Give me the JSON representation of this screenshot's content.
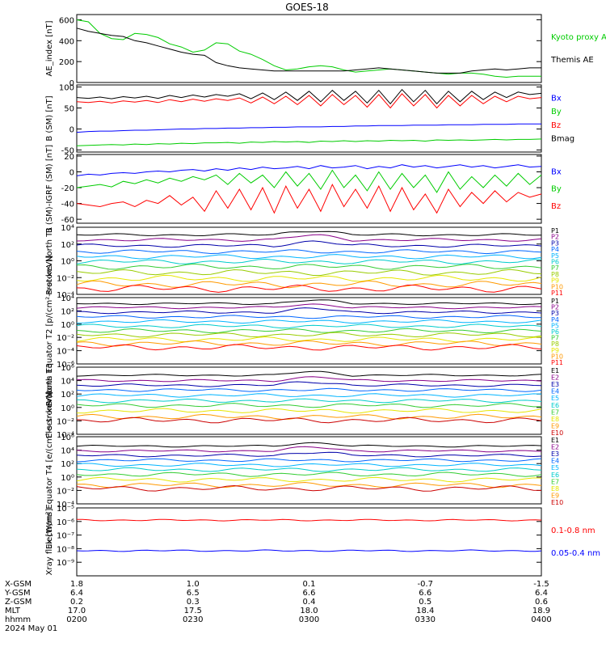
{
  "title": "GOES-18",
  "colors": {
    "black": "#000000",
    "green": "#00cc00",
    "blue": "#0000ff",
    "red": "#ff0000",
    "purple": "#880088",
    "navy": "#0000aa",
    "cyan": "#00b4ff",
    "teal": "#00cccc",
    "lime": "#33cc33",
    "yellow": "#e6e600",
    "orange": "#ff9900",
    "darkred": "#cc0000",
    "maroon": "#aa0000"
  },
  "chart_data": [
    {
      "type": "line",
      "ylabel": "AE_index [nT]",
      "ylim": [
        0,
        650
      ],
      "yticks": [
        "600",
        "400",
        "200",
        "0"
      ],
      "ytick_values": [
        600,
        400,
        200,
        0
      ],
      "legend": [
        "Kyoto proxy AE",
        "Themis AE"
      ],
      "series": [
        {
          "name": "Kyoto proxy AE",
          "color": "#00cc00",
          "values": [
            600,
            580,
            470,
            420,
            410,
            470,
            460,
            430,
            370,
            340,
            290,
            310,
            380,
            370,
            300,
            270,
            220,
            160,
            120,
            130,
            150,
            160,
            150,
            120,
            100,
            110,
            120,
            130,
            120,
            110,
            100,
            90,
            80,
            90,
            90,
            80,
            60,
            50,
            60,
            60,
            60
          ]
        },
        {
          "name": "Themis AE",
          "color": "#000000",
          "values": [
            520,
            490,
            470,
            450,
            440,
            400,
            380,
            350,
            320,
            290,
            270,
            260,
            190,
            160,
            140,
            130,
            120,
            110,
            110,
            110,
            110,
            110,
            110,
            110,
            120,
            130,
            140,
            130,
            120,
            110,
            100,
            90,
            90,
            90,
            110,
            120,
            130,
            120,
            130,
            140,
            140
          ]
        }
      ]
    },
    {
      "type": "line",
      "ylabel": "B (SM) [nT]",
      "ylim": [
        -55,
        105
      ],
      "yticks": [
        "100",
        "50",
        "0",
        "-50"
      ],
      "ytick_values": [
        100,
        50,
        0,
        -50
      ],
      "legend": [
        "Bx",
        "By",
        "Bz",
        "Bmag"
      ],
      "series": [
        {
          "name": "Bx",
          "color": "#0000ff",
          "values": [
            -8,
            -6,
            -5,
            -5,
            -4,
            -3,
            -3,
            -2,
            -1,
            0,
            0,
            1,
            1,
            2,
            2,
            3,
            3,
            4,
            4,
            5,
            5,
            5,
            6,
            6,
            7,
            7,
            8,
            8,
            8,
            9,
            9,
            9,
            10,
            10,
            10,
            11,
            11,
            11,
            12,
            12,
            12
          ]
        },
        {
          "name": "By",
          "color": "#00cc00",
          "values": [
            -40,
            -39,
            -38,
            -37,
            -38,
            -36,
            -37,
            -35,
            -36,
            -34,
            -35,
            -33,
            -33,
            -32,
            -34,
            -31,
            -32,
            -30,
            -31,
            -30,
            -32,
            -29,
            -30,
            -28,
            -30,
            -28,
            -29,
            -27,
            -28,
            -27,
            -29,
            -26,
            -27,
            -26,
            -27,
            -26,
            -25,
            -26,
            -25,
            -25,
            -24
          ]
        },
        {
          "name": "Bz",
          "color": "#ff0000",
          "values": [
            65,
            63,
            66,
            62,
            67,
            64,
            68,
            63,
            70,
            65,
            71,
            66,
            72,
            68,
            74,
            62,
            76,
            60,
            78,
            58,
            80,
            55,
            82,
            58,
            80,
            52,
            82,
            50,
            84,
            55,
            82,
            50,
            80,
            55,
            80,
            60,
            78,
            65,
            78,
            72,
            75
          ]
        },
        {
          "name": "Bmag",
          "color": "#000000",
          "values": [
            75,
            73,
            76,
            72,
            77,
            74,
            78,
            73,
            80,
            75,
            81,
            76,
            82,
            78,
            84,
            72,
            86,
            70,
            88,
            68,
            90,
            65,
            92,
            68,
            90,
            62,
            92,
            60,
            94,
            65,
            92,
            60,
            90,
            65,
            90,
            70,
            88,
            75,
            88,
            82,
            85
          ]
        }
      ]
    },
    {
      "type": "line",
      "ylabel": "B (SM)-IGRF (SM) [nT]",
      "ylim": [
        -65,
        22
      ],
      "yticks": [
        "20",
        "0",
        "-20",
        "-40",
        "-60"
      ],
      "ytick_values": [
        20,
        0,
        -20,
        -40,
        -60
      ],
      "legend": [
        "Bx",
        "By",
        "Bz"
      ],
      "series": [
        {
          "name": "Bx",
          "color": "#0000ff",
          "values": [
            -5,
            -3,
            -4,
            -2,
            -1,
            -2,
            0,
            1,
            0,
            2,
            3,
            1,
            4,
            2,
            5,
            3,
            6,
            4,
            5,
            7,
            4,
            8,
            5,
            6,
            8,
            4,
            7,
            5,
            9,
            6,
            8,
            5,
            7,
            9,
            6,
            8,
            5,
            7,
            9,
            6,
            7
          ]
        },
        {
          "name": "By",
          "color": "#00cc00",
          "values": [
            -20,
            -18,
            -16,
            -19,
            -12,
            -15,
            -10,
            -14,
            -8,
            -12,
            -6,
            -10,
            -4,
            -16,
            -2,
            -14,
            -4,
            -20,
            0,
            -18,
            -2,
            -22,
            2,
            -20,
            -4,
            -24,
            0,
            -22,
            -2,
            -20,
            -4,
            -26,
            0,
            -22,
            -6,
            -20,
            -4,
            -18,
            -2,
            -16,
            -4
          ]
        },
        {
          "name": "Bz",
          "color": "#ff0000",
          "values": [
            -40,
            -42,
            -44,
            -40,
            -38,
            -44,
            -36,
            -40,
            -30,
            -42,
            -32,
            -50,
            -24,
            -46,
            -22,
            -48,
            -20,
            -52,
            -18,
            -46,
            -22,
            -50,
            -16,
            -44,
            -22,
            -46,
            -18,
            -50,
            -20,
            -48,
            -28,
            -52,
            -22,
            -44,
            -26,
            -40,
            -24,
            -38,
            -26,
            -32,
            -28
          ]
        }
      ]
    },
    {
      "type": "line",
      "log": true,
      "ylabel": "Protons North T1",
      "ylim": [
        0.0001,
        10000
      ],
      "yticks": [
        "10⁴",
        "10²",
        "10⁰",
        "10⁻²",
        "10⁻⁴"
      ],
      "ytick_values": [
        4,
        2,
        0,
        -2,
        -4
      ],
      "legend": [
        "P1",
        "P2",
        "P3",
        "P4",
        "P5",
        "P6",
        "P7",
        "P8",
        "P9",
        "P10",
        "P11"
      ],
      "series_log10_levels": [
        3.1,
        2.5,
        1.8,
        1.1,
        0.5,
        -0.1,
        -0.7,
        -1.4,
        -2.1,
        -2.8,
        -3.3
      ],
      "colors": [
        "#000000",
        "#880088",
        "#0000aa",
        "#0066ff",
        "#00b4ff",
        "#00cccc",
        "#33cc33",
        "#99cc00",
        "#e6e600",
        "#ff9900",
        "#ff0000"
      ]
    },
    {
      "type": "line",
      "log": true,
      "ylabel": "Protons Equator T2 [p/(cm²-s-sr-keV)]",
      "ylim": [
        1e-06,
        10000
      ],
      "yticks": [
        "10⁴",
        "10²",
        "10⁰",
        "10⁻²",
        "10⁻⁴",
        "10⁻⁶"
      ],
      "ytick_values": [
        4,
        2,
        0,
        -2,
        -4,
        -6
      ],
      "legend": [
        "P1",
        "P2",
        "P3",
        "P4",
        "P5",
        "P6",
        "P7",
        "P8",
        "P9",
        "P10",
        "P11"
      ],
      "series_log10_levels": [
        3.1,
        2.5,
        1.8,
        1.1,
        0.4,
        -0.3,
        -1.0,
        -1.6,
        -2.3,
        -2.9,
        -3.5
      ],
      "colors": [
        "#000000",
        "#880088",
        "#0000aa",
        "#0066ff",
        "#00b4ff",
        "#00cccc",
        "#33cc33",
        "#99cc00",
        "#e6e600",
        "#ff9900",
        "#ff0000"
      ]
    },
    {
      "type": "line",
      "log": true,
      "ylabel": "Electrons North T3",
      "ylim": [
        0.0001,
        1000000
      ],
      "yticks": [
        "10⁶",
        "10⁴",
        "10²",
        "10⁰",
        "10⁻²",
        "10⁻⁴"
      ],
      "ytick_values": [
        6,
        4,
        2,
        0,
        -2,
        -4
      ],
      "legend": [
        "E1",
        "E2",
        "E3",
        "E4",
        "E5",
        "E6",
        "E7",
        "E8",
        "E9",
        "E10"
      ],
      "series_log10_levels": [
        4.8,
        4.0,
        3.3,
        2.6,
        1.8,
        1.0,
        0.3,
        -0.5,
        -1.4,
        -1.9
      ],
      "colors": [
        "#000000",
        "#880088",
        "#0000aa",
        "#0066ff",
        "#00b4ff",
        "#00cccc",
        "#33cc33",
        "#e6e600",
        "#ff9900",
        "#cc0000"
      ]
    },
    {
      "type": "line",
      "log": true,
      "ylabel": "Electrons Equator T4 [e/(cm²-s-sr-keV)]",
      "ylim": [
        0.0001,
        1000000
      ],
      "yticks": [
        "10⁶",
        "10⁴",
        "10²",
        "10⁰",
        "10⁻²",
        "10⁻⁴"
      ],
      "ytick_values": [
        6,
        4,
        2,
        0,
        -2,
        -4
      ],
      "legend": [
        "E1",
        "E2",
        "E3",
        "E4",
        "E5",
        "E6",
        "E7",
        "E8",
        "E9",
        "E10"
      ],
      "series_log10_levels": [
        4.6,
        3.9,
        3.2,
        2.5,
        1.8,
        1.1,
        0.4,
        -0.4,
        -1.2,
        -1.7
      ],
      "colors": [
        "#000000",
        "#880088",
        "#0000aa",
        "#0066ff",
        "#00b4ff",
        "#00cccc",
        "#33cc33",
        "#e6e600",
        "#ff9900",
        "#cc0000"
      ]
    },
    {
      "type": "line",
      "log": true,
      "ylabel": "Xray flux [W/m²]",
      "ylim": [
        1e-10,
        1e-05
      ],
      "yticks": [
        "10⁻⁵",
        "10⁻⁶",
        "10⁻⁷",
        "10⁻⁸",
        "10⁻⁹"
      ],
      "ytick_values": [
        -5,
        -6,
        -7,
        -8,
        -9
      ],
      "legend": [
        "0.1-0.8 nm",
        "0.05-0.4 nm"
      ],
      "series": [
        {
          "name": "0.1-0.8 nm",
          "color": "#ff0000",
          "log10_level": -5.9
        },
        {
          "name": "0.05-0.4 nm",
          "color": "#0000ff",
          "log10_level": -8.15
        }
      ]
    }
  ],
  "x_axis": {
    "row_labels": [
      "X-GSM",
      "Y-GSM",
      "Z-GSM",
      "MLT",
      "hhmm",
      "2024 May 01"
    ],
    "columns": [
      [
        "1.8",
        "6.4",
        "0.2",
        "17.0",
        "0200"
      ],
      [
        "1.0",
        "6.5",
        "0.3",
        "17.5",
        "0230"
      ],
      [
        "0.1",
        "6.6",
        "0.4",
        "18.0",
        "0300"
      ],
      [
        "-0.7",
        "6.6",
        "0.5",
        "18.4",
        "0330"
      ],
      [
        "-1.5",
        "6.4",
        "0.6",
        "18.9",
        "0400"
      ]
    ]
  }
}
